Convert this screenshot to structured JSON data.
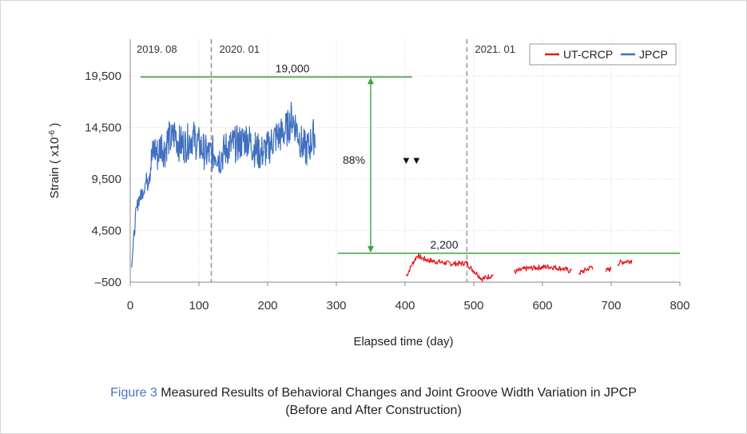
{
  "chart_data": {
    "type": "line",
    "xlabel": "Elapsed time (day)",
    "ylabel_main": "Strain ( x10",
    "ylabel_exp": "-6",
    "ylabel_close": " )",
    "xlim": [
      0,
      800
    ],
    "ylim": [
      -500,
      21000
    ],
    "x_ticks": [
      0,
      100,
      200,
      300,
      400,
      500,
      600,
      700,
      800
    ],
    "x_tick_labels": [
      "0",
      "100",
      "200",
      "300",
      "400",
      "500",
      "600",
      "700",
      "800"
    ],
    "y_ticks": [
      -500,
      4500,
      9500,
      14500,
      19500
    ],
    "y_tick_labels": [
      "–500",
      "4,500",
      "9,500",
      "14,500",
      "19,500"
    ],
    "grid": true,
    "legend_position": "top-right",
    "period_markers": [
      {
        "x": 0,
        "label": "2019. 08",
        "dashed": false
      },
      {
        "x": 118,
        "label": "2020. 01",
        "dashed": true
      },
      {
        "x": 490,
        "label": "2021. 01",
        "dashed": true
      }
    ],
    "series": [
      {
        "name": "UT-CRCP",
        "color": "#e8161b",
        "x": [
          402,
          410,
          418,
          425,
          435,
          450,
          465,
          480,
          490,
          495,
          500,
          505,
          512,
          520,
          528,
          560,
          575,
          590,
          610,
          630,
          640,
          655,
          672,
          690,
          700,
          712,
          730
        ],
        "y": [
          100,
          1200,
          2100,
          1800,
          1600,
          1450,
          1300,
          1300,
          1350,
          900,
          600,
          300,
          -200,
          0,
          200,
          500,
          800,
          900,
          1000,
          800,
          600,
          400,
          1000,
          500,
          800,
          1400,
          1600
        ]
      },
      {
        "name": "JPCP",
        "color": "#3f6fc0",
        "x": [
          2,
          5,
          8,
          12,
          15,
          20,
          25,
          30,
          35,
          40,
          45,
          50,
          55,
          60,
          65,
          70,
          80,
          90,
          100,
          110,
          118,
          125,
          130,
          140,
          150,
          160,
          170,
          180,
          190,
          200,
          210,
          220,
          230,
          235,
          240,
          245,
          250,
          255,
          260,
          265,
          270
        ],
        "y": [
          1500,
          3500,
          6000,
          7500,
          7800,
          8600,
          9800,
          11000,
          12500,
          11800,
          13000,
          12200,
          13500,
          13200,
          14000,
          13000,
          12800,
          13600,
          12800,
          12000,
          11800,
          12200,
          11500,
          12500,
          12800,
          13000,
          13500,
          12500,
          12000,
          12400,
          13500,
          13800,
          14500,
          15500,
          14800,
          13800,
          12800,
          12400,
          12500,
          13500,
          13800
        ]
      }
    ],
    "annotations": [
      {
        "text": "19,000",
        "y": 19400,
        "x_from": 15,
        "x_to": 410
      },
      {
        "text": "2,200",
        "y": 2300,
        "x_from": 302,
        "x_to": 800
      },
      {
        "text": "88%",
        "x": 350,
        "from_y": 19400,
        "to_y": 2300,
        "marker": "▼▼"
      }
    ],
    "reference_color": "#3aa53a"
  },
  "caption": {
    "figure_label": "Figure 3",
    "line1": "Measured Results of Behavioral Changes and Joint Groove Width Variation in JPCP",
    "line2": "(Before and After Construction)"
  }
}
